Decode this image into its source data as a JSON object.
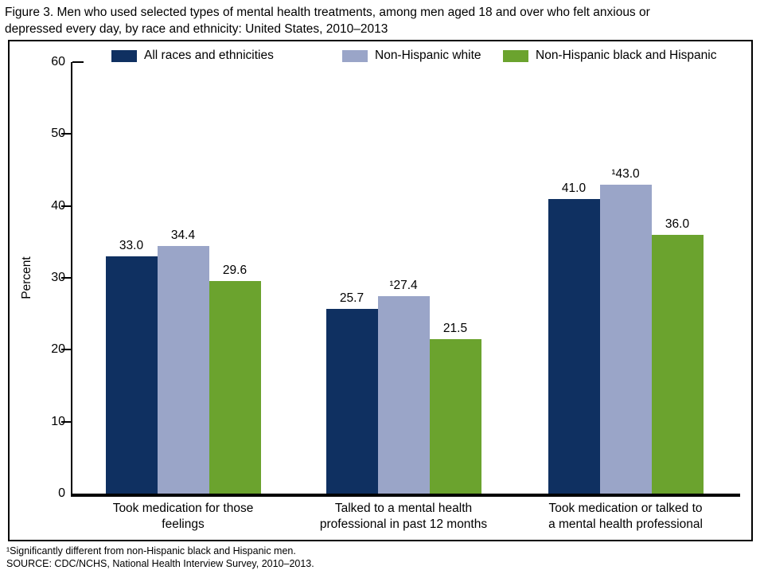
{
  "title": "Figure 3. Men who used selected types of mental health treatments, among men aged 18 and over who felt anxious or depressed every day, by race and ethnicity: United States, 2010–2013",
  "title_lines": [
    "Figure 3. Men who used selected types of mental health treatments, among men aged 18 and over who felt anxious or",
    "depressed every day, by race and ethnicity: United States, 2010–2013"
  ],
  "footnotes": [
    "¹Significantly different from non-Hispanic black and Hispanic men.",
    "SOURCE: CDC/NCHS, National Health Interview Survey, 2010–2013."
  ],
  "chart_data": {
    "type": "bar",
    "title": "Figure 3. Men who used selected types of mental health treatments, among men aged 18 and over who felt anxious or depressed every day, by race and ethnicity: United States, 2010–2013",
    "xlabel": "",
    "ylabel": "Percent",
    "ylim": [
      0,
      60
    ],
    "yticks": [
      0,
      10,
      20,
      30,
      40,
      50,
      60
    ],
    "grid": false,
    "legend_position": "top",
    "categories": [
      "Took medication for those feelings",
      "Talked to a mental health professional in past 12 months",
      "Took medication or talked to a mental health professional"
    ],
    "category_lines": [
      [
        "Took medication for those",
        "feelings"
      ],
      [
        "Talked to a mental health",
        "professional in past 12 months"
      ],
      [
        "Took medication or talked to",
        "a mental health professional"
      ]
    ],
    "series": [
      {
        "name": "All races and ethnicities",
        "color": "#0f3061",
        "values": [
          33.0,
          25.7,
          41.0
        ],
        "labels": [
          "33.0",
          "25.7",
          "41.0"
        ]
      },
      {
        "name": "Non-Hispanic white",
        "color": "#9aa5c8",
        "values": [
          34.4,
          27.4,
          43.0
        ],
        "labels": [
          "34.4",
          "¹27.4",
          "¹43.0"
        ]
      },
      {
        "name": "Non-Hispanic black and Hispanic",
        "color": "#6ba32e",
        "values": [
          29.6,
          21.5,
          36.0
        ],
        "labels": [
          "29.6",
          "21.5",
          "36.0"
        ]
      }
    ],
    "axis_color": "#000000",
    "background_color": "#ffffff"
  }
}
